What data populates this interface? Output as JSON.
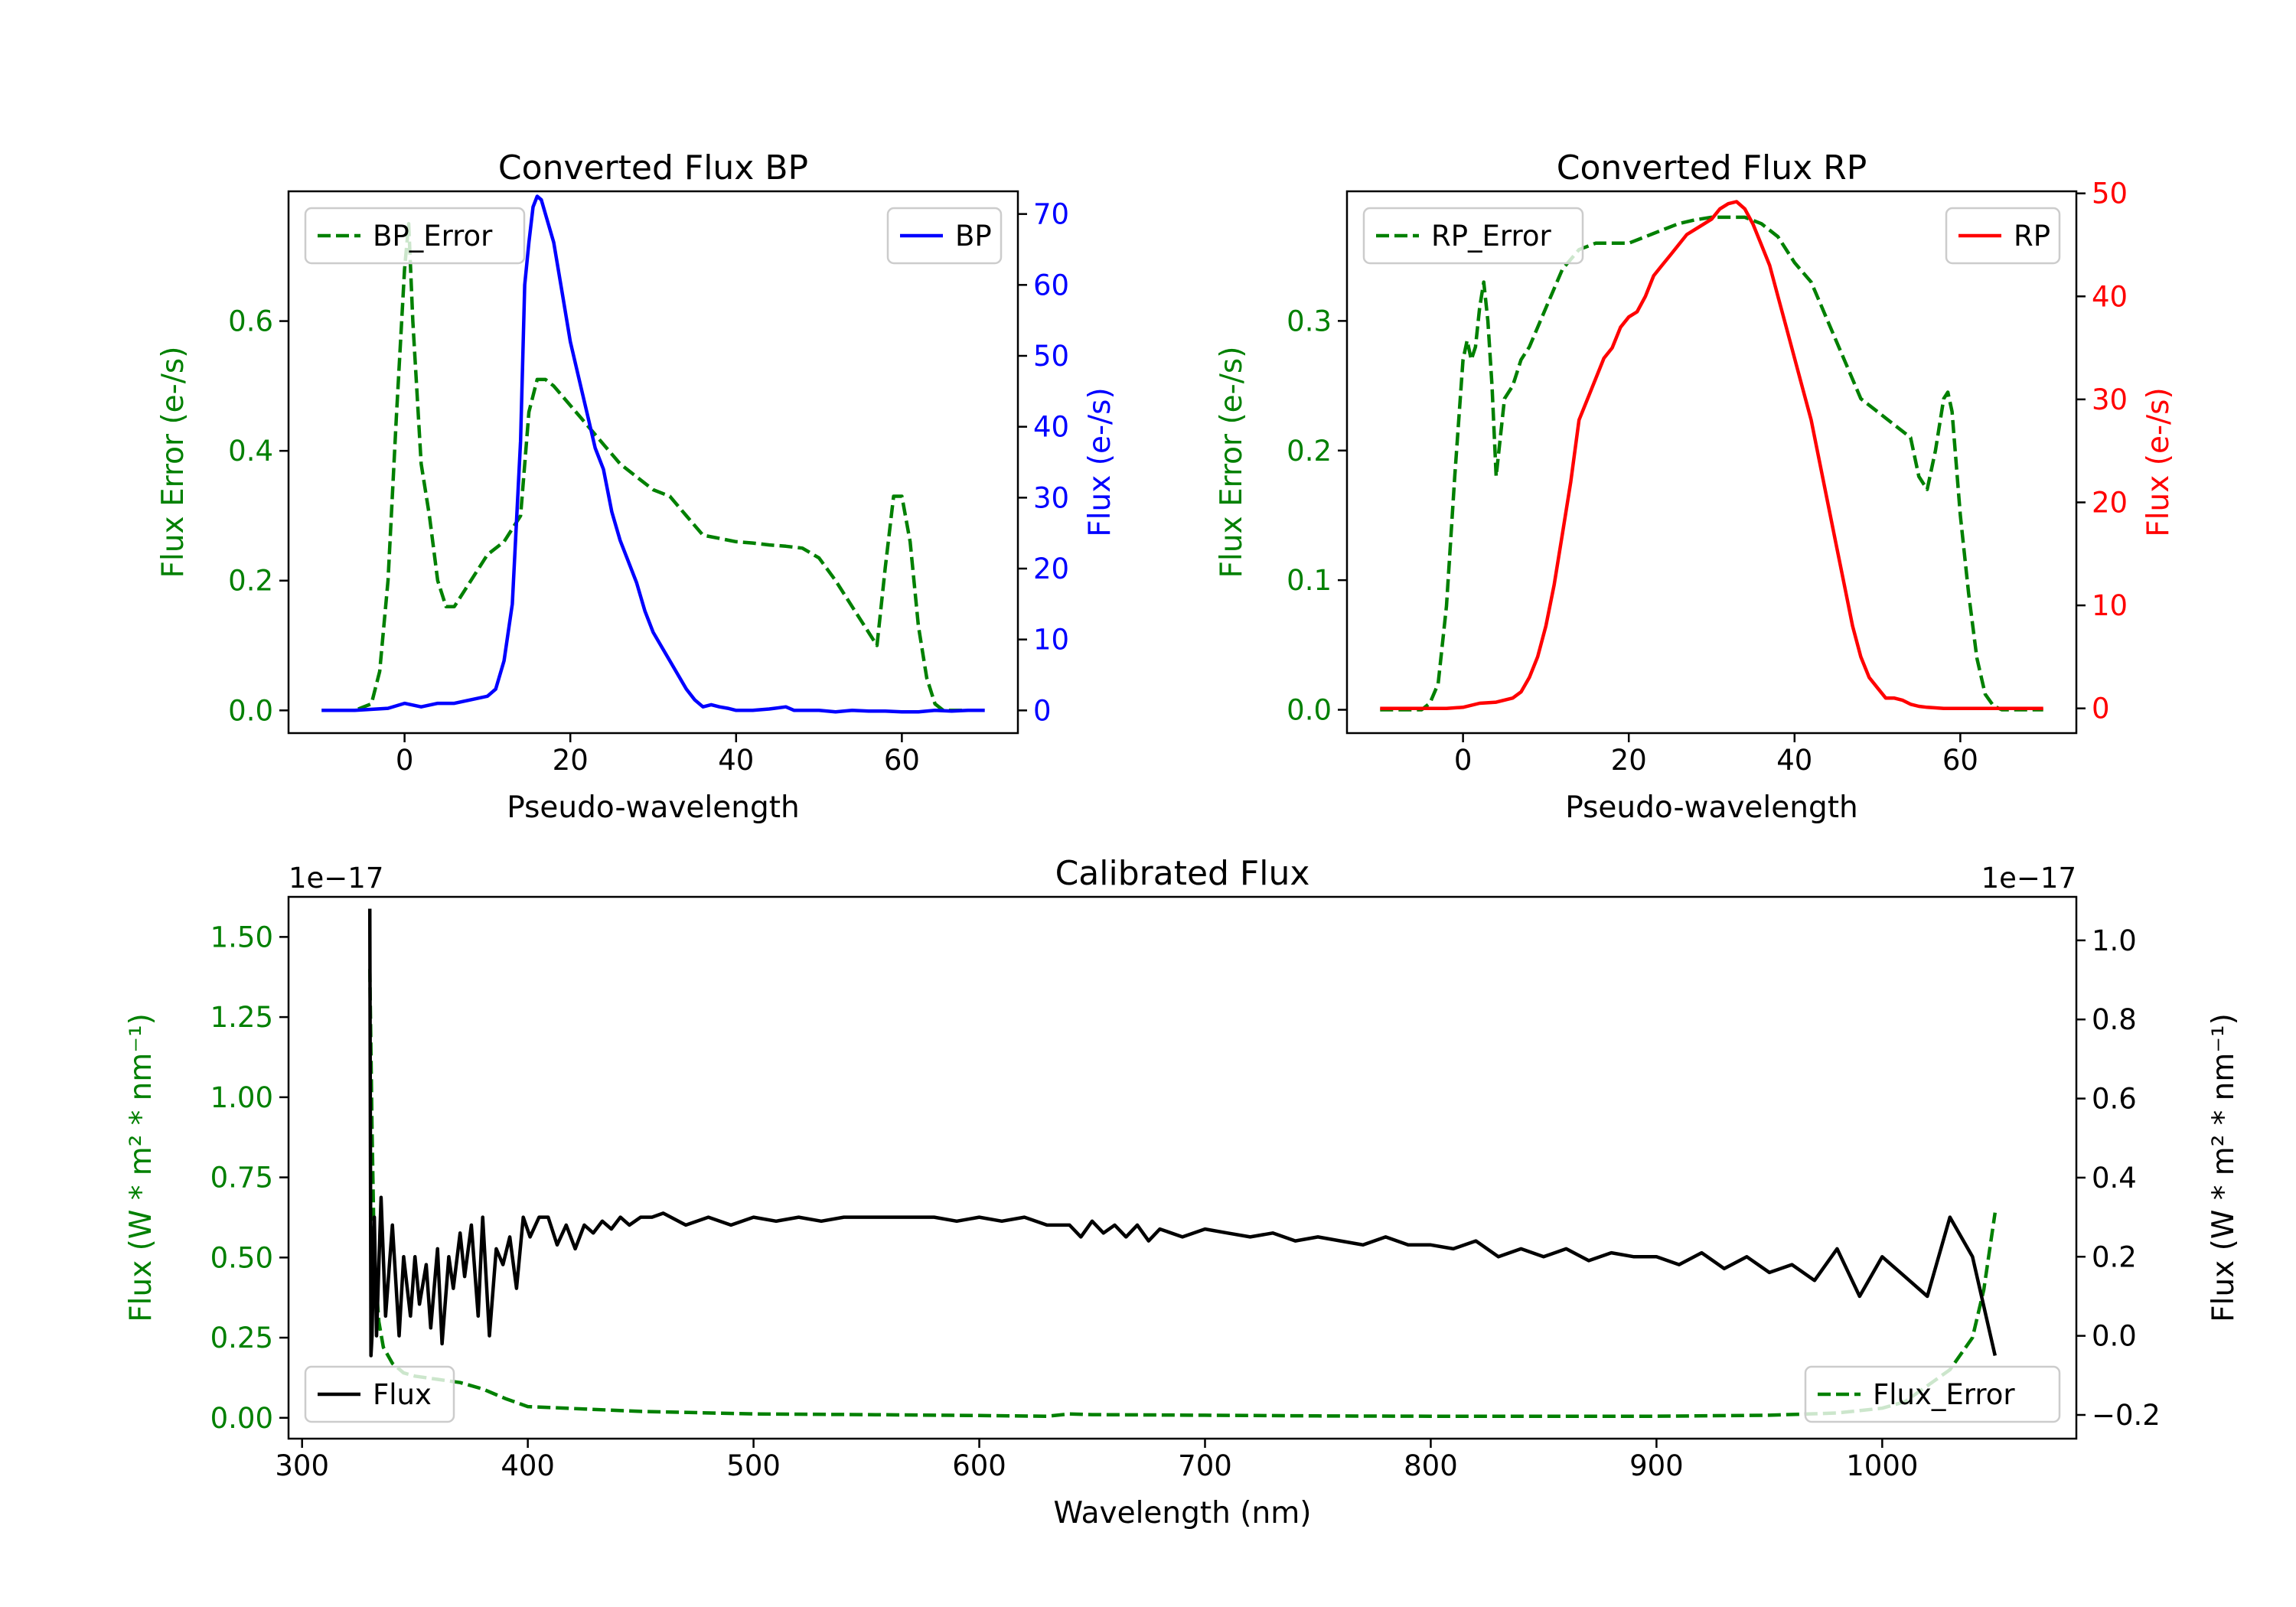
{
  "colors": {
    "bp": "#0000ff",
    "rp": "#ff0000",
    "error": "#008000",
    "flux": "#000000",
    "axis": "#000000"
  },
  "chart_data": [
    {
      "id": "bp",
      "type": "line",
      "title": "Converted Flux BP",
      "xlabel": "Pseudo-wavelength",
      "ylabel_left": "Flux Error (e-/s)",
      "ylabel_right": "Flux (e-/s)",
      "xlim": [
        -14,
        74
      ],
      "ylim_left": [
        -0.035,
        0.8
      ],
      "ylim_right": [
        -3.2,
        73.2
      ],
      "xticks": [
        0,
        20,
        40,
        60
      ],
      "yticks_left": [
        0.0,
        0.2,
        0.4,
        0.6
      ],
      "yticks_right": [
        0,
        10,
        20,
        30,
        40,
        50,
        60,
        70
      ],
      "left_tick_color": "green",
      "right_tick_color": "blue",
      "legend_left": {
        "label": "BP_Error",
        "placement": "upper-left"
      },
      "legend_right": {
        "label": "BP",
        "placement": "upper-right"
      },
      "series": [
        {
          "name": "BP_Error",
          "axis": "left",
          "style": "dashed",
          "color": "green",
          "x": [
            -10,
            -6,
            -4,
            -3,
            -2,
            -1,
            0,
            0.5,
            1,
            2,
            3,
            4,
            5,
            6,
            8,
            10,
            12,
            14,
            15,
            16,
            17,
            18,
            20,
            22,
            24,
            26,
            28,
            30,
            32,
            34,
            36,
            38,
            40,
            42,
            44,
            46,
            48,
            50,
            52,
            54,
            56,
            57,
            58,
            59,
            60,
            61,
            62,
            63,
            64,
            65,
            66,
            68,
            70
          ],
          "y": [
            0,
            0,
            0.01,
            0.06,
            0.2,
            0.45,
            0.68,
            0.75,
            0.6,
            0.38,
            0.3,
            0.2,
            0.16,
            0.16,
            0.2,
            0.24,
            0.26,
            0.3,
            0.46,
            0.51,
            0.51,
            0.5,
            0.47,
            0.44,
            0.41,
            0.38,
            0.36,
            0.34,
            0.33,
            0.3,
            0.27,
            0.265,
            0.26,
            0.258,
            0.255,
            0.253,
            0.25,
            0.235,
            0.2,
            0.16,
            0.12,
            0.1,
            0.22,
            0.33,
            0.33,
            0.26,
            0.13,
            0.05,
            0.01,
            0,
            0,
            0,
            0
          ]
        },
        {
          "name": "BP",
          "axis": "right",
          "style": "solid",
          "color": "blue",
          "x": [
            -10,
            -6,
            -2,
            0,
            2,
            4,
            6,
            8,
            10,
            11,
            12,
            13,
            14,
            14.5,
            15,
            15.5,
            16,
            16.5,
            17,
            18,
            19,
            20,
            21,
            22,
            23,
            24,
            25,
            26,
            27,
            28,
            29,
            30,
            31,
            32,
            33,
            34,
            35,
            36,
            37,
            38,
            39,
            40,
            42,
            44,
            46,
            47,
            48,
            50,
            52,
            54,
            56,
            58,
            60,
            62,
            64,
            66,
            68,
            70
          ],
          "y": [
            0,
            0,
            0.3,
            1,
            0.5,
            1,
            1,
            1.5,
            2,
            3,
            7,
            15,
            38,
            60,
            66,
            71,
            72.5,
            72,
            70,
            66,
            59,
            52,
            47,
            42,
            37,
            34,
            28,
            24,
            21,
            18,
            14,
            11,
            9,
            7,
            5,
            3,
            1.5,
            0.5,
            0.8,
            0.5,
            0.3,
            0,
            0,
            0.2,
            0.5,
            0,
            0,
            0,
            -0.2,
            0,
            -0.1,
            -0.1,
            -0.2,
            -0.2,
            0,
            -0.1,
            0,
            0
          ]
        }
      ]
    },
    {
      "id": "rp",
      "type": "line",
      "title": "Converted Flux RP",
      "xlabel": "Pseudo-wavelength",
      "ylabel_left": "Flux Error (e-/s)",
      "ylabel_right": "Flux (e-/s)",
      "xlim": [
        -14,
        74
      ],
      "ylim_left": [
        -0.018,
        0.4
      ],
      "ylim_right": [
        -2.4,
        50.2
      ],
      "xticks": [
        0,
        20,
        40,
        60
      ],
      "yticks_left": [
        0.0,
        0.1,
        0.2,
        0.3
      ],
      "yticks_right": [
        0,
        10,
        20,
        30,
        40,
        50
      ],
      "left_tick_color": "green",
      "right_tick_color": "red",
      "legend_left": {
        "label": "RP_Error",
        "placement": "upper-left"
      },
      "legend_right": {
        "label": "RP",
        "placement": "upper-right"
      },
      "series": [
        {
          "name": "RP_Error",
          "axis": "left",
          "style": "dashed",
          "color": "green",
          "x": [
            -10,
            -5,
            -4,
            -3,
            -2,
            -1,
            0,
            0.5,
            1,
            1.5,
            2,
            2.5,
            3,
            3.5,
            4,
            5,
            6,
            7,
            8,
            10,
            12,
            14,
            16,
            18,
            20,
            22,
            24,
            26,
            28,
            30,
            32,
            34,
            36,
            38,
            40,
            42,
            44,
            46,
            48,
            50,
            52,
            54,
            55,
            56,
            57,
            58,
            58.5,
            59,
            60,
            61,
            62,
            63,
            64,
            65,
            66,
            68,
            70
          ],
          "y": [
            0,
            0,
            0.005,
            0.02,
            0.08,
            0.18,
            0.27,
            0.285,
            0.27,
            0.28,
            0.31,
            0.33,
            0.3,
            0.25,
            0.18,
            0.24,
            0.25,
            0.27,
            0.28,
            0.31,
            0.34,
            0.355,
            0.36,
            0.36,
            0.36,
            0.365,
            0.37,
            0.375,
            0.378,
            0.38,
            0.38,
            0.38,
            0.375,
            0.365,
            0.345,
            0.33,
            0.3,
            0.27,
            0.24,
            0.23,
            0.22,
            0.21,
            0.18,
            0.17,
            0.2,
            0.24,
            0.245,
            0.23,
            0.15,
            0.09,
            0.04,
            0.012,
            0.003,
            0,
            0,
            0,
            0
          ]
        },
        {
          "name": "RP",
          "axis": "right",
          "style": "solid",
          "color": "red",
          "x": [
            -10,
            -6,
            -4,
            -2,
            0,
            2,
            4,
            6,
            7,
            8,
            9,
            10,
            11,
            12,
            13,
            14,
            15,
            16,
            17,
            18,
            19,
            20,
            21,
            22,
            23,
            24,
            25,
            26,
            27,
            28,
            29,
            30,
            31,
            32,
            33,
            34,
            35,
            36,
            37,
            38,
            39,
            40,
            41,
            42,
            43,
            44,
            45,
            46,
            47,
            48,
            49,
            50,
            51,
            52,
            53,
            54,
            55,
            56,
            58,
            60,
            62,
            64,
            66,
            68,
            70
          ],
          "y": [
            0,
            0,
            0,
            0,
            0.1,
            0.5,
            0.6,
            1,
            1.6,
            3,
            5,
            8,
            12,
            17,
            22,
            28,
            30,
            32,
            34,
            35,
            37,
            38,
            38.5,
            40,
            42,
            43,
            44,
            45,
            46,
            46.5,
            47,
            47.5,
            48.5,
            49,
            49.2,
            48.5,
            47,
            45,
            43,
            40,
            37,
            34,
            31,
            28,
            24,
            20,
            16,
            12,
            8,
            5,
            3,
            2,
            1,
            1,
            0.8,
            0.4,
            0.2,
            0.1,
            0,
            0,
            0,
            0,
            0,
            0,
            0
          ]
        }
      ]
    },
    {
      "id": "calibrated",
      "type": "line",
      "title": "Calibrated Flux",
      "xlabel": "Wavelength (nm)",
      "ylabel_left": "Flux (W * m² * nm⁻¹)",
      "ylabel_right": "Flux (W * m² * nm⁻¹)",
      "offset_left": "1e−17",
      "offset_right": "1e−17",
      "xlim": [
        294,
        1086
      ],
      "ylim_left": [
        -0.065,
        1.625
      ],
      "ylim_right": [
        -0.26,
        1.11
      ],
      "xticks": [
        300,
        400,
        500,
        600,
        700,
        800,
        900,
        1000
      ],
      "yticks_left": [
        "0.00",
        "0.25",
        "0.50",
        "0.75",
        "1.00",
        "1.25",
        "1.50"
      ],
      "yticks_right": [
        "−0.2",
        "0.0",
        "0.2",
        "0.4",
        "0.6",
        "0.8",
        "1.0"
      ],
      "yticks_right_values": [
        -0.2,
        0.0,
        0.2,
        0.4,
        0.6,
        0.8,
        1.0
      ],
      "left_tick_color": "green",
      "right_tick_color": "black",
      "legend_left": {
        "label": "Flux",
        "placement": "lower-left"
      },
      "legend_right": {
        "label": "Flux_Error",
        "placement": "lower-right"
      },
      "series": [
        {
          "name": "Flux_Error",
          "axis": "left",
          "style": "dashed",
          "color": "green",
          "x": [
            330,
            331,
            332,
            334,
            336,
            340,
            345,
            350,
            360,
            370,
            380,
            390,
            400,
            450,
            500,
            550,
            600,
            630,
            640,
            650,
            700,
            750,
            800,
            850,
            900,
            950,
            980,
            1000,
            1010,
            1020,
            1030,
            1040,
            1045,
            1050
          ],
          "y": [
            1.4,
            0.9,
            0.5,
            0.3,
            0.22,
            0.17,
            0.14,
            0.13,
            0.12,
            0.11,
            0.09,
            0.06,
            0.035,
            0.02,
            0.012,
            0.01,
            0.007,
            0.005,
            0.012,
            0.01,
            0.008,
            0.006,
            0.005,
            0.005,
            0.005,
            0.008,
            0.015,
            0.03,
            0.05,
            0.1,
            0.15,
            0.25,
            0.4,
            0.64
          ]
        },
        {
          "name": "Flux",
          "axis": "right",
          "style": "solid",
          "color": "black",
          "x": [
            330,
            330.5,
            331,
            332,
            333,
            335,
            337,
            340,
            343,
            345,
            348,
            350,
            352,
            355,
            357,
            360,
            362,
            365,
            367,
            370,
            372,
            375,
            378,
            380,
            383,
            386,
            389,
            392,
            395,
            398,
            401,
            405,
            409,
            413,
            417,
            421,
            425,
            429,
            433,
            437,
            441,
            445,
            450,
            455,
            460,
            470,
            480,
            490,
            500,
            510,
            520,
            530,
            540,
            550,
            560,
            570,
            580,
            590,
            600,
            610,
            620,
            630,
            640,
            645,
            650,
            655,
            660,
            665,
            670,
            675,
            680,
            690,
            700,
            710,
            720,
            730,
            740,
            750,
            760,
            770,
            780,
            790,
            800,
            810,
            820,
            830,
            840,
            850,
            860,
            870,
            880,
            890,
            900,
            910,
            920,
            930,
            940,
            950,
            960,
            970,
            980,
            990,
            1000,
            1010,
            1020,
            1030,
            1040,
            1050
          ],
          "y": [
            1.08,
            -0.05,
            0.0,
            0.3,
            0.0,
            0.35,
            0.05,
            0.28,
            0.0,
            0.2,
            0.05,
            0.2,
            0.08,
            0.18,
            0.02,
            0.22,
            -0.02,
            0.2,
            0.12,
            0.26,
            0.15,
            0.28,
            0.05,
            0.3,
            0.0,
            0.22,
            0.18,
            0.25,
            0.12,
            0.3,
            0.25,
            0.3,
            0.3,
            0.23,
            0.28,
            0.22,
            0.28,
            0.26,
            0.29,
            0.27,
            0.3,
            0.28,
            0.3,
            0.3,
            0.31,
            0.28,
            0.3,
            0.28,
            0.3,
            0.29,
            0.3,
            0.29,
            0.3,
            0.3,
            0.3,
            0.3,
            0.3,
            0.29,
            0.3,
            0.29,
            0.3,
            0.28,
            0.28,
            0.25,
            0.29,
            0.26,
            0.28,
            0.25,
            0.28,
            0.24,
            0.27,
            0.25,
            0.27,
            0.26,
            0.25,
            0.26,
            0.24,
            0.25,
            0.24,
            0.23,
            0.25,
            0.23,
            0.23,
            0.22,
            0.24,
            0.2,
            0.22,
            0.2,
            0.22,
            0.19,
            0.21,
            0.2,
            0.2,
            0.18,
            0.21,
            0.17,
            0.2,
            0.16,
            0.18,
            0.14,
            0.22,
            0.1,
            0.2,
            0.15,
            0.1,
            0.3,
            0.2,
            -0.05
          ]
        }
      ]
    }
  ]
}
